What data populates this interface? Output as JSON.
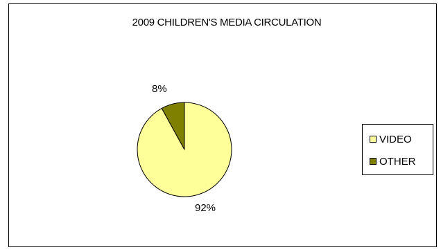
{
  "chart_data": {
    "type": "pie",
    "title": "2009 CHILDREN'S MEDIA CIRCULATION",
    "categories": [
      "VIDEO",
      "OTHER"
    ],
    "values": [
      92,
      8
    ],
    "data_labels": [
      "92%",
      "8%"
    ],
    "colors": [
      "#FFFF99",
      "#808000"
    ],
    "legend_position": "right"
  }
}
